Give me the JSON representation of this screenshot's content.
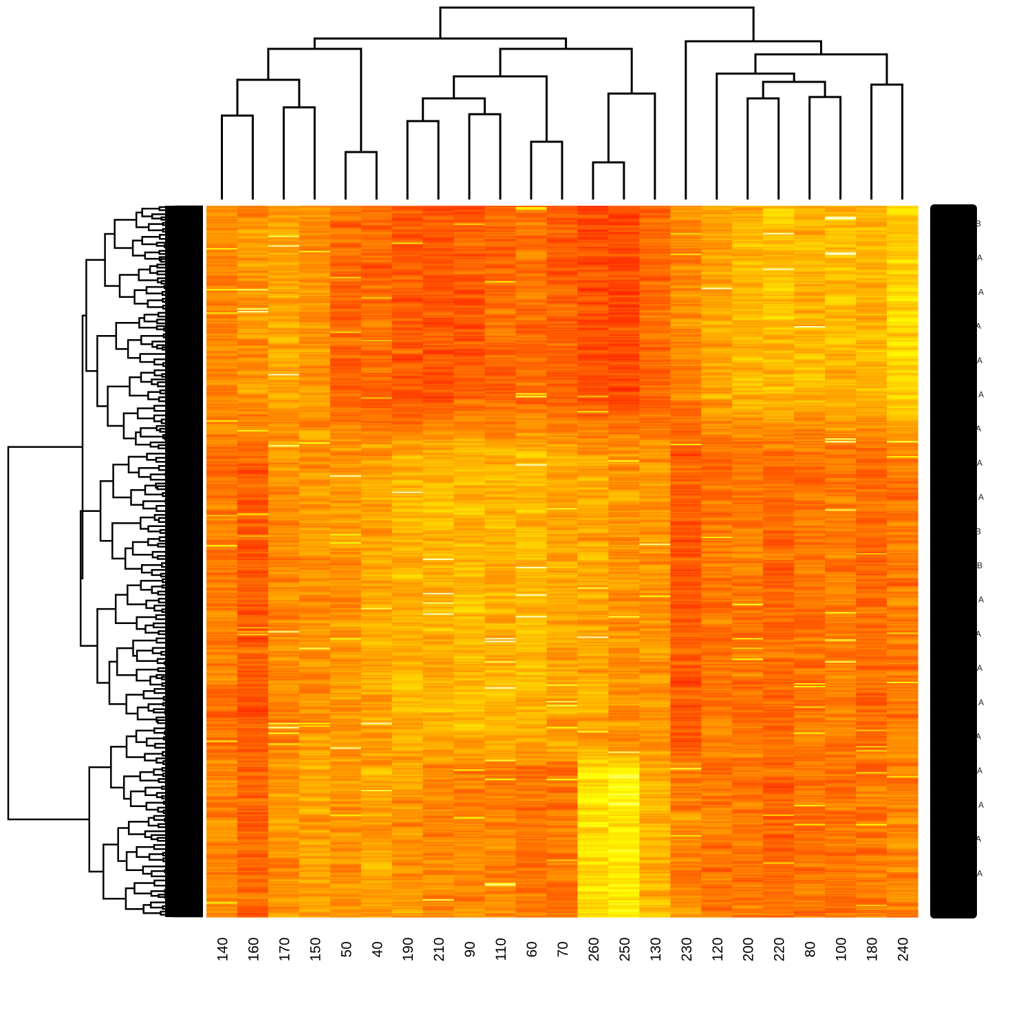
{
  "chart_data": {
    "type": "heatmap",
    "title": "",
    "xlabel": "",
    "ylabel": "",
    "columns": [
      "140",
      "160",
      "170",
      "150",
      "50",
      "40",
      "190",
      "210",
      "90",
      "110",
      "60",
      "70",
      "260",
      "250",
      "130",
      "230",
      "120",
      "200",
      "220",
      "80",
      "100",
      "180",
      "240"
    ],
    "row_count": 520,
    "colormap": [
      "#ff0000",
      "#ff8000",
      "#ffff00",
      "#ffffcc"
    ],
    "column_dendrogram": true,
    "row_dendrogram": true,
    "row_labels_legible": false,
    "row_label_fragments": [
      "B",
      "A",
      "A",
      "A",
      "A",
      "A",
      "A",
      "A",
      "A",
      "B",
      "B",
      "A",
      "A",
      "A",
      "A",
      "A",
      "A",
      "A",
      "A",
      "A"
    ],
    "column_profile_bands": {
      "top_rows_0_160": [
        0.45,
        0.5,
        0.55,
        0.5,
        0.35,
        0.35,
        0.3,
        0.28,
        0.32,
        0.35,
        0.38,
        0.32,
        0.25,
        0.25,
        0.35,
        0.45,
        0.55,
        0.6,
        0.65,
        0.6,
        0.62,
        0.6,
        0.7
      ],
      "middle_rows_160_400": [
        0.4,
        0.3,
        0.45,
        0.5,
        0.5,
        0.55,
        0.6,
        0.6,
        0.62,
        0.6,
        0.62,
        0.55,
        0.55,
        0.5,
        0.5,
        0.3,
        0.4,
        0.4,
        0.35,
        0.4,
        0.42,
        0.35,
        0.4
      ],
      "bottom_rows_400_520": [
        0.45,
        0.35,
        0.5,
        0.55,
        0.5,
        0.55,
        0.5,
        0.45,
        0.45,
        0.45,
        0.4,
        0.4,
        0.75,
        0.8,
        0.6,
        0.45,
        0.4,
        0.4,
        0.35,
        0.4,
        0.4,
        0.4,
        0.45
      ]
    }
  }
}
